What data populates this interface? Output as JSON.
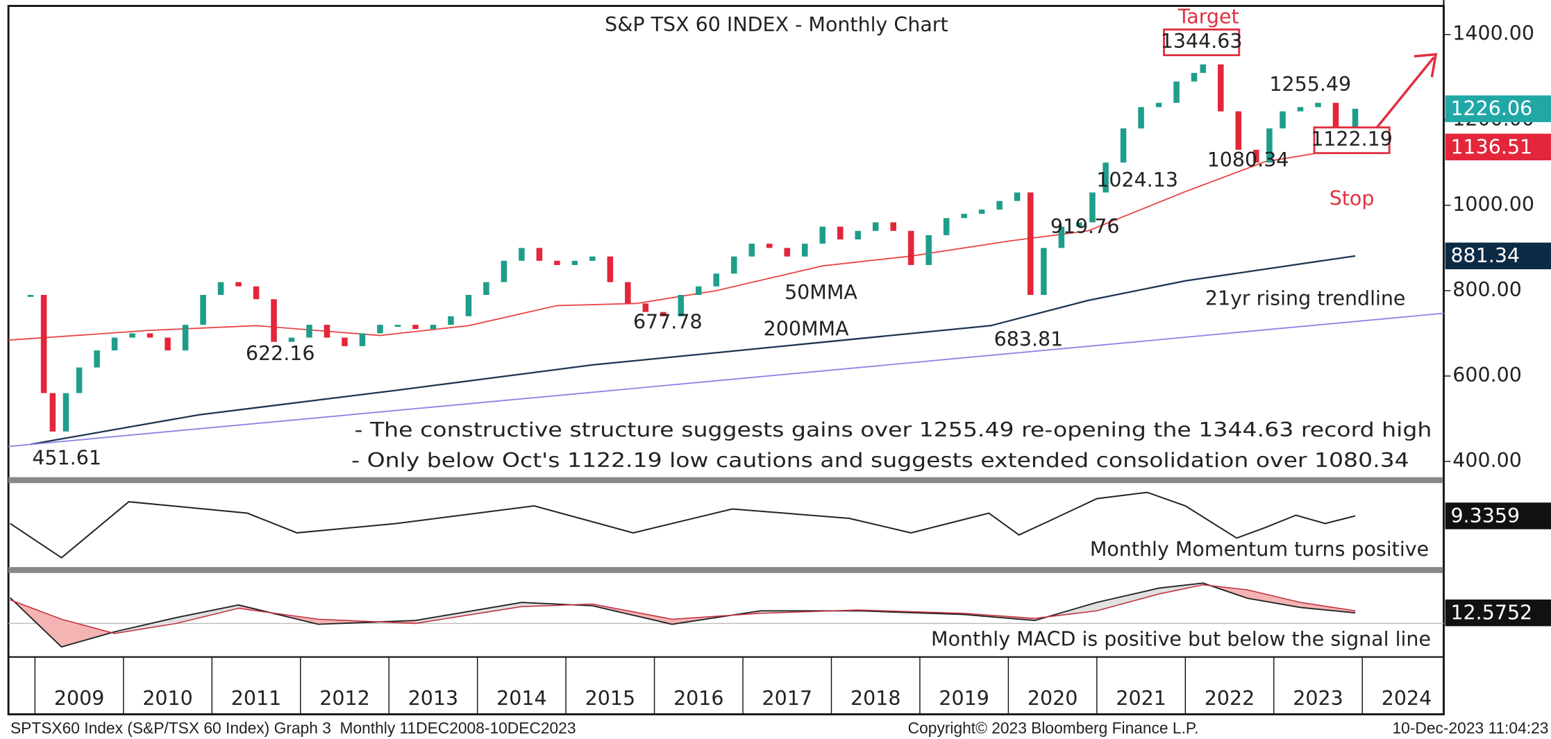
{
  "chart_data": [
    {
      "type": "candlestick",
      "title": "S&P TSX 60 INDEX - Monthly Chart",
      "x": [
        2008.95,
        2009.1,
        2009.2,
        2009.35,
        2009.5,
        2009.7,
        2009.9,
        2010.1,
        2010.3,
        2010.5,
        2010.7,
        2010.9,
        2011.1,
        2011.3,
        2011.5,
        2011.7,
        2011.9,
        2012.1,
        2012.3,
        2012.5,
        2012.7,
        2012.9,
        2013.1,
        2013.3,
        2013.5,
        2013.7,
        2013.9,
        2014.1,
        2014.3,
        2014.5,
        2014.7,
        2014.9,
        2015.1,
        2015.3,
        2015.5,
        2015.7,
        2015.9,
        2016.1,
        2016.3,
        2016.5,
        2016.7,
        2016.9,
        2017.1,
        2017.3,
        2017.5,
        2017.7,
        2017.9,
        2018.1,
        2018.3,
        2018.5,
        2018.7,
        2018.9,
        2019.1,
        2019.3,
        2019.5,
        2019.7,
        2019.9,
        2020.1,
        2020.25,
        2020.4,
        2020.6,
        2020.8,
        2020.95,
        2021.1,
        2021.3,
        2021.5,
        2021.7,
        2021.9,
        2022.1,
        2022.2,
        2022.4,
        2022.6,
        2022.8,
        2022.95,
        2023.1,
        2023.3,
        2023.5,
        2023.7,
        2023.83,
        2023.92
      ],
      "values": [
        790,
        560,
        470,
        560,
        620,
        660,
        690,
        700,
        690,
        660,
        720,
        790,
        820,
        810,
        780,
        680,
        690,
        720,
        690,
        670,
        700,
        720,
        720,
        710,
        720,
        740,
        790,
        820,
        870,
        900,
        870,
        860,
        870,
        880,
        820,
        770,
        750,
        740,
        790,
        810,
        840,
        880,
        910,
        900,
        880,
        910,
        950,
        920,
        940,
        960,
        940,
        860,
        930,
        970,
        980,
        990,
        1010,
        1030,
        790,
        900,
        950,
        960,
        1030,
        1100,
        1180,
        1230,
        1240,
        1290,
        1310,
        1330,
        1220,
        1130,
        1100,
        1180,
        1220,
        1230,
        1240,
        1170,
        1130,
        1226.06
      ],
      "colors": {
        "up": "#1e9e8a",
        "down": "#e3263a"
      },
      "overlays": [
        {
          "x": [
            2008.7,
            2010.3,
            2011.5,
            2012.9,
            2013.9,
            2014.9,
            2015.8,
            2016.7,
            2017.9,
            2018.9,
            2020.0,
            2020.9,
            2022.0,
            2022.9,
            2023.92
          ],
          "values": [
            684,
            707,
            718,
            695,
            718,
            765,
            770,
            800,
            858,
            881,
            916,
            940,
            1032,
            1102,
            1136.51
          ],
          "color": "#e84848"
        },
        {
          "x": [
            2008.95,
            2010.85,
            2013.1,
            2015.3,
            2017.55,
            2019.8,
            2020.9,
            2022.0,
            2023.92
          ],
          "values": [
            440,
            509,
            567,
            626,
            672,
            718,
            777,
            823,
            881.34
          ],
          "color": "#1c3550"
        },
        {
          "x": [
            2008.7,
            2024.92
          ],
          "values": [
            435,
            747
          ],
          "color": "#8a86e6"
        }
      ],
      "ylim": [
        363,
        1467
      ],
      "yticks": [
        {
          "value": 400,
          "label": "400.00"
        },
        {
          "value": 600,
          "label": "600.00"
        },
        {
          "value": 800,
          "label": "800.00"
        },
        {
          "value": 1000,
          "label": "1000.00"
        },
        {
          "value": 1200,
          "label": "1200.00"
        },
        {
          "value": 1400,
          "label": "1400.00"
        }
      ],
      "price_levels": [
        1344.63,
        1255.49,
        1122.19,
        1080.34,
        1024.13,
        919.76,
        677.78,
        683.81,
        622.16,
        451.61
      ],
      "target_label": "Target",
      "stop_label": "Stop",
      "ma50_label": "50MMA",
      "ma200_label": "200MMA",
      "trendline_label": "21yr rising trendline",
      "notes": [
        "- The constructive structure suggests gains over 1255.49 re-opening the 1344.63 record high",
        "- Only below Oct's 1122.19 low cautions and suggests extended consolidation over 1080.34"
      ]
    },
    {
      "type": "line",
      "x": [
        2008.72,
        2009.3,
        2010.06,
        2011.4,
        2011.96,
        2013.08,
        2014.64,
        2015.76,
        2016.88,
        2018.2,
        2018.9,
        2019.78,
        2020.12,
        2020.45,
        2021.0,
        2021.57,
        2022.0,
        2022.58,
        2022.9,
        2023.25,
        2023.58,
        2023.92
      ],
      "values": [
        2,
        -31,
        23,
        12,
        -7,
        2,
        19,
        -7,
        16,
        7,
        -7,
        12,
        -9,
        4,
        26,
        32,
        19,
        -12,
        -2,
        10,
        2,
        9.3359
      ],
      "color": "#222222",
      "ylim": [
        -40,
        40
      ],
      "note": "Monthly Momentum turns positive"
    },
    {
      "type": "macd",
      "x": [
        2008.72,
        2009.3,
        2009.9,
        2010.6,
        2011.3,
        2012.2,
        2013.3,
        2014.5,
        2015.3,
        2016.2,
        2017.2,
        2018.3,
        2019.5,
        2020.3,
        2021.0,
        2021.7,
        2022.2,
        2022.7,
        2023.3,
        2023.92
      ],
      "values": [
        30.6,
        -28,
        -10,
        7,
        22,
        -1,
        3.5,
        25,
        21,
        -1,
        15,
        15,
        10.6,
        3.5,
        25,
        42,
        48,
        30,
        19,
        12.5752
      ],
      "signal_values": [
        28,
        5,
        -12,
        0,
        18,
        5,
        0,
        20,
        23,
        5,
        12,
        16,
        12,
        6,
        15,
        35,
        46,
        40,
        25,
        15
      ],
      "colors": {
        "above": "#e0e0e0",
        "below": "#f4b4b4"
      },
      "ylim": [
        -40,
        60
      ],
      "note": "Monthly MACD is positive but below the signal line"
    }
  ],
  "x_axis": {
    "xlim": [
      2008.7,
      2024.92
    ],
    "categories": [
      "2009",
      "2010",
      "2011",
      "2012",
      "2013",
      "2014",
      "2015",
      "2016",
      "2017",
      "2018",
      "2019",
      "2020",
      "2021",
      "2022",
      "2023",
      "2024"
    ]
  },
  "footer": {
    "left": "SPTSX60 Index (S&P/TSX 60 Index) Graph 3  Monthly 11DEC2008-10DEC2023",
    "center": "Copyright© 2023 Bloomberg Finance L.P.",
    "right": "10-Dec-2023 11:04:23"
  }
}
